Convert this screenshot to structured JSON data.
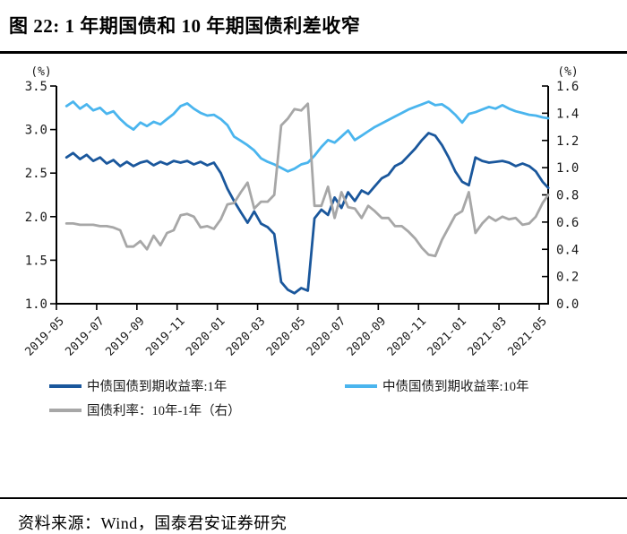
{
  "figure": {
    "title": "图 22: 1 年期国债和 10 年期国债利差收窄",
    "source": "资料来源：Wind，国泰君安证券研究"
  },
  "chart_data": {
    "type": "line",
    "title": "图 22: 1 年期国债和 10 年期国债利差收窄",
    "grid": false,
    "legend_position": "bottom-left-two-columns",
    "left_axis": {
      "unit": "(%)",
      "min": 1.0,
      "max": 3.5,
      "ticks": [
        "3.5",
        "3.0",
        "2.5",
        "2.0",
        "1.5",
        "1.0"
      ]
    },
    "right_axis": {
      "unit": "(%)",
      "min": 0.0,
      "max": 1.6,
      "ticks": [
        "1.6",
        "1.4",
        "1.2",
        "1.0",
        "0.8",
        "0.6",
        "0.4",
        "0.2",
        "0.0"
      ]
    },
    "x_axis": {
      "tick_labels": [
        "2019-05",
        "2019-07",
        "2019-09",
        "2019-11",
        "2020-01",
        "2020-03",
        "2020-05",
        "2020-07",
        "2020-09",
        "2020-11",
        "2021-01",
        "2021-03",
        "2021-05"
      ],
      "tick_month_positions": [
        0,
        2,
        4,
        6,
        8,
        10,
        12,
        14,
        16,
        18,
        20,
        22,
        24
      ],
      "label_rotation_deg": -45
    },
    "x_months": [
      0.5,
      0.83,
      1.17,
      1.5,
      1.83,
      2.17,
      2.5,
      2.83,
      3.17,
      3.5,
      3.83,
      4.17,
      4.5,
      4.83,
      5.17,
      5.5,
      5.83,
      6.17,
      6.5,
      6.83,
      7.17,
      7.5,
      7.83,
      8.17,
      8.5,
      8.83,
      9.17,
      9.5,
      9.83,
      10.17,
      10.5,
      10.83,
      11.17,
      11.5,
      11.83,
      12.17,
      12.5,
      12.83,
      13.17,
      13.5,
      13.83,
      14.17,
      14.5,
      14.83,
      15.17,
      15.5,
      15.83,
      16.17,
      16.5,
      16.83,
      17.17,
      17.5,
      17.83,
      18.17,
      18.5,
      18.83,
      19.17,
      19.5,
      19.83,
      20.17,
      20.5,
      20.83,
      21.17,
      21.5,
      21.83,
      22.17,
      22.5,
      22.83,
      23.17,
      23.5,
      23.83,
      24.17,
      24.45
    ],
    "series": [
      {
        "name": "中债国债到期收益率:1年",
        "axis": "left",
        "color": "#1a579c",
        "values": [
          2.68,
          2.73,
          2.66,
          2.71,
          2.64,
          2.68,
          2.61,
          2.65,
          2.58,
          2.63,
          2.58,
          2.62,
          2.64,
          2.59,
          2.63,
          2.6,
          2.64,
          2.62,
          2.64,
          2.6,
          2.63,
          2.59,
          2.62,
          2.5,
          2.32,
          2.18,
          2.05,
          1.93,
          2.06,
          1.92,
          1.88,
          1.8,
          1.25,
          1.16,
          1.12,
          1.18,
          1.15,
          1.98,
          2.08,
          2.02,
          2.22,
          2.1,
          2.28,
          2.18,
          2.3,
          2.26,
          2.35,
          2.44,
          2.48,
          2.58,
          2.62,
          2.7,
          2.78,
          2.88,
          2.96,
          2.93,
          2.82,
          2.68,
          2.52,
          2.4,
          2.36,
          2.68,
          2.64,
          2.62,
          2.63,
          2.64,
          2.62,
          2.58,
          2.61,
          2.58,
          2.52,
          2.4,
          2.33
        ]
      },
      {
        "name": "中债国债到期收益率:10年",
        "axis": "left",
        "color": "#4ab5ee",
        "values": [
          3.27,
          3.32,
          3.24,
          3.29,
          3.22,
          3.25,
          3.18,
          3.21,
          3.12,
          3.05,
          3.0,
          3.08,
          3.04,
          3.09,
          3.06,
          3.12,
          3.18,
          3.27,
          3.3,
          3.24,
          3.19,
          3.16,
          3.17,
          3.12,
          3.05,
          2.92,
          2.87,
          2.82,
          2.76,
          2.67,
          2.63,
          2.6,
          2.56,
          2.52,
          2.55,
          2.6,
          2.62,
          2.7,
          2.8,
          2.88,
          2.85,
          2.92,
          2.99,
          2.88,
          2.93,
          2.98,
          3.03,
          3.07,
          3.11,
          3.15,
          3.19,
          3.23,
          3.26,
          3.29,
          3.32,
          3.28,
          3.29,
          3.24,
          3.17,
          3.08,
          3.18,
          3.2,
          3.23,
          3.26,
          3.24,
          3.28,
          3.24,
          3.21,
          3.19,
          3.17,
          3.16,
          3.14,
          3.13
        ]
      },
      {
        "name": "国债利率：10年-1年（右）",
        "axis": "right",
        "color": "#a7a7a7",
        "values": [
          0.59,
          0.59,
          0.58,
          0.58,
          0.58,
          0.57,
          0.57,
          0.56,
          0.54,
          0.42,
          0.42,
          0.46,
          0.4,
          0.5,
          0.43,
          0.52,
          0.54,
          0.65,
          0.66,
          0.64,
          0.56,
          0.57,
          0.55,
          0.62,
          0.73,
          0.74,
          0.82,
          0.89,
          0.7,
          0.75,
          0.75,
          0.8,
          1.31,
          1.36,
          1.43,
          1.42,
          1.47,
          0.72,
          0.72,
          0.86,
          0.63,
          0.82,
          0.71,
          0.7,
          0.63,
          0.72,
          0.68,
          0.63,
          0.63,
          0.57,
          0.57,
          0.53,
          0.48,
          0.41,
          0.36,
          0.35,
          0.47,
          0.56,
          0.65,
          0.68,
          0.82,
          0.52,
          0.59,
          0.64,
          0.61,
          0.64,
          0.62,
          0.63,
          0.58,
          0.59,
          0.64,
          0.74,
          0.8
        ]
      }
    ]
  }
}
